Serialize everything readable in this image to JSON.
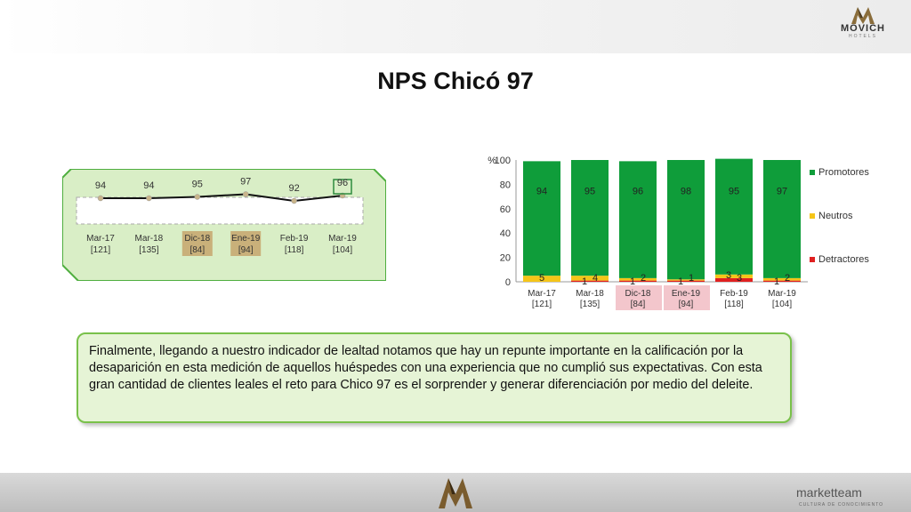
{
  "brand": {
    "name": "MOVICH",
    "sub": "HOTELS"
  },
  "title": "NPS Chicó 97",
  "nps_panel": {
    "points": [
      94,
      94,
      95,
      97,
      92,
      96
    ],
    "labels": [
      "Mar-17",
      "Mar-18",
      "Dic-18",
      "Ene-19",
      "Feb-19",
      "Mar-19"
    ],
    "sublabels": [
      "[121]",
      "[135]",
      "[84]",
      "[94]",
      "[118]",
      "[104]"
    ],
    "highlighted_periods": [
      "Dic-18",
      "Ene-19"
    ],
    "highlight_color": "#c9b07a",
    "line_color": "#111111",
    "marker_color": "#c8b48a",
    "box_fill": "#d9eec6",
    "box_stroke": "#4fae3f"
  },
  "chart_data": {
    "type": "bar",
    "stacked": true,
    "categories": [
      "Mar-17",
      "Mar-18",
      "Dic-18",
      "Ene-19",
      "Feb-19",
      "Mar-19"
    ],
    "category_sublabels": [
      "[121]",
      "[135]",
      "[84]",
      "[94]",
      "[118]",
      "[104]"
    ],
    "series": [
      {
        "name": "Detractores",
        "color": "#e02020",
        "values": [
          0,
          1,
          1,
          1,
          3,
          1
        ]
      },
      {
        "name": "Neutros",
        "color": "#f5c518",
        "values": [
          5,
          4,
          2,
          1,
          3,
          2
        ]
      },
      {
        "name": "Promotores",
        "color": "#0f9d3a",
        "values": [
          94,
          95,
          96,
          98,
          95,
          97
        ]
      }
    ],
    "ylabel": "%",
    "ylim": [
      0,
      100
    ],
    "yticks": [
      0,
      20,
      40,
      60,
      80,
      100
    ],
    "legend_position": "right",
    "highlighted_categories": [
      "Dic-18",
      "Ene-19"
    ],
    "highlight_color": "#f3c6cc"
  },
  "text_box": {
    "text": "Finalmente, llegando a nuestro indicador de lealtad notamos que hay un repunte importante en la calificación por la desaparición en esta medición de aquellos huéspedes con una experiencia que no cumplió sus expectativas. Con esta gran cantidad de clientes leales el reto para Chico 97 es el sorprender y generar diferenciación por medio del deleite."
  },
  "footer": {
    "logo": "marketteam",
    "sub": "CULTURA DE CONOCIMIENTO"
  }
}
